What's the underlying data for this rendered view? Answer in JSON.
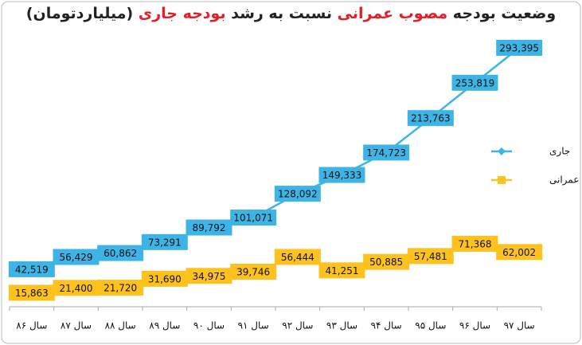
{
  "chart_data": {
    "type": "line",
    "title": [
      "وضعیت بودجه ",
      "مصوب عمرانی",
      " نسبت به رشد ",
      "بودجه جاری",
      " (میلیاردتومان)"
    ],
    "categories": [
      "سال ۸۶",
      "سال ۸۷",
      "سال ۸۸",
      "سال ۸۹",
      "سال ۹۰",
      "سال ۹۱",
      "سال ۹۲",
      "سال ۹۳",
      "سال ۹۴",
      "سال ۹۵",
      "سال ۹۶",
      "سال ۹۷"
    ],
    "series": [
      {
        "name": "جاری",
        "color": "#3db4e5",
        "marker": "diamond",
        "values": [
          42519,
          56429,
          60862,
          73291,
          89792,
          101071,
          128092,
          149333,
          174723,
          213763,
          253819,
          293395
        ],
        "value_labels": [
          "42,519",
          "56,429",
          "60,862",
          "73,291",
          "89,792",
          "101,071",
          "128,092",
          "149,333",
          "174,723",
          "213,763",
          "253,819",
          "293,395"
        ]
      },
      {
        "name": "عمرانی",
        "color": "#fdc21e",
        "marker": "square",
        "values": [
          15863,
          21400,
          21720,
          31690,
          34975,
          39746,
          56444,
          41251,
          50885,
          57481,
          71368,
          62002
        ],
        "value_labels": [
          "15,863",
          "21,400",
          "21,720",
          "31,690",
          "34,975",
          "39,746",
          "56,444",
          "41,251",
          "50,885",
          "57,481",
          "71,368",
          "62,002"
        ]
      }
    ],
    "ylim": [
      0,
      325000
    ]
  }
}
